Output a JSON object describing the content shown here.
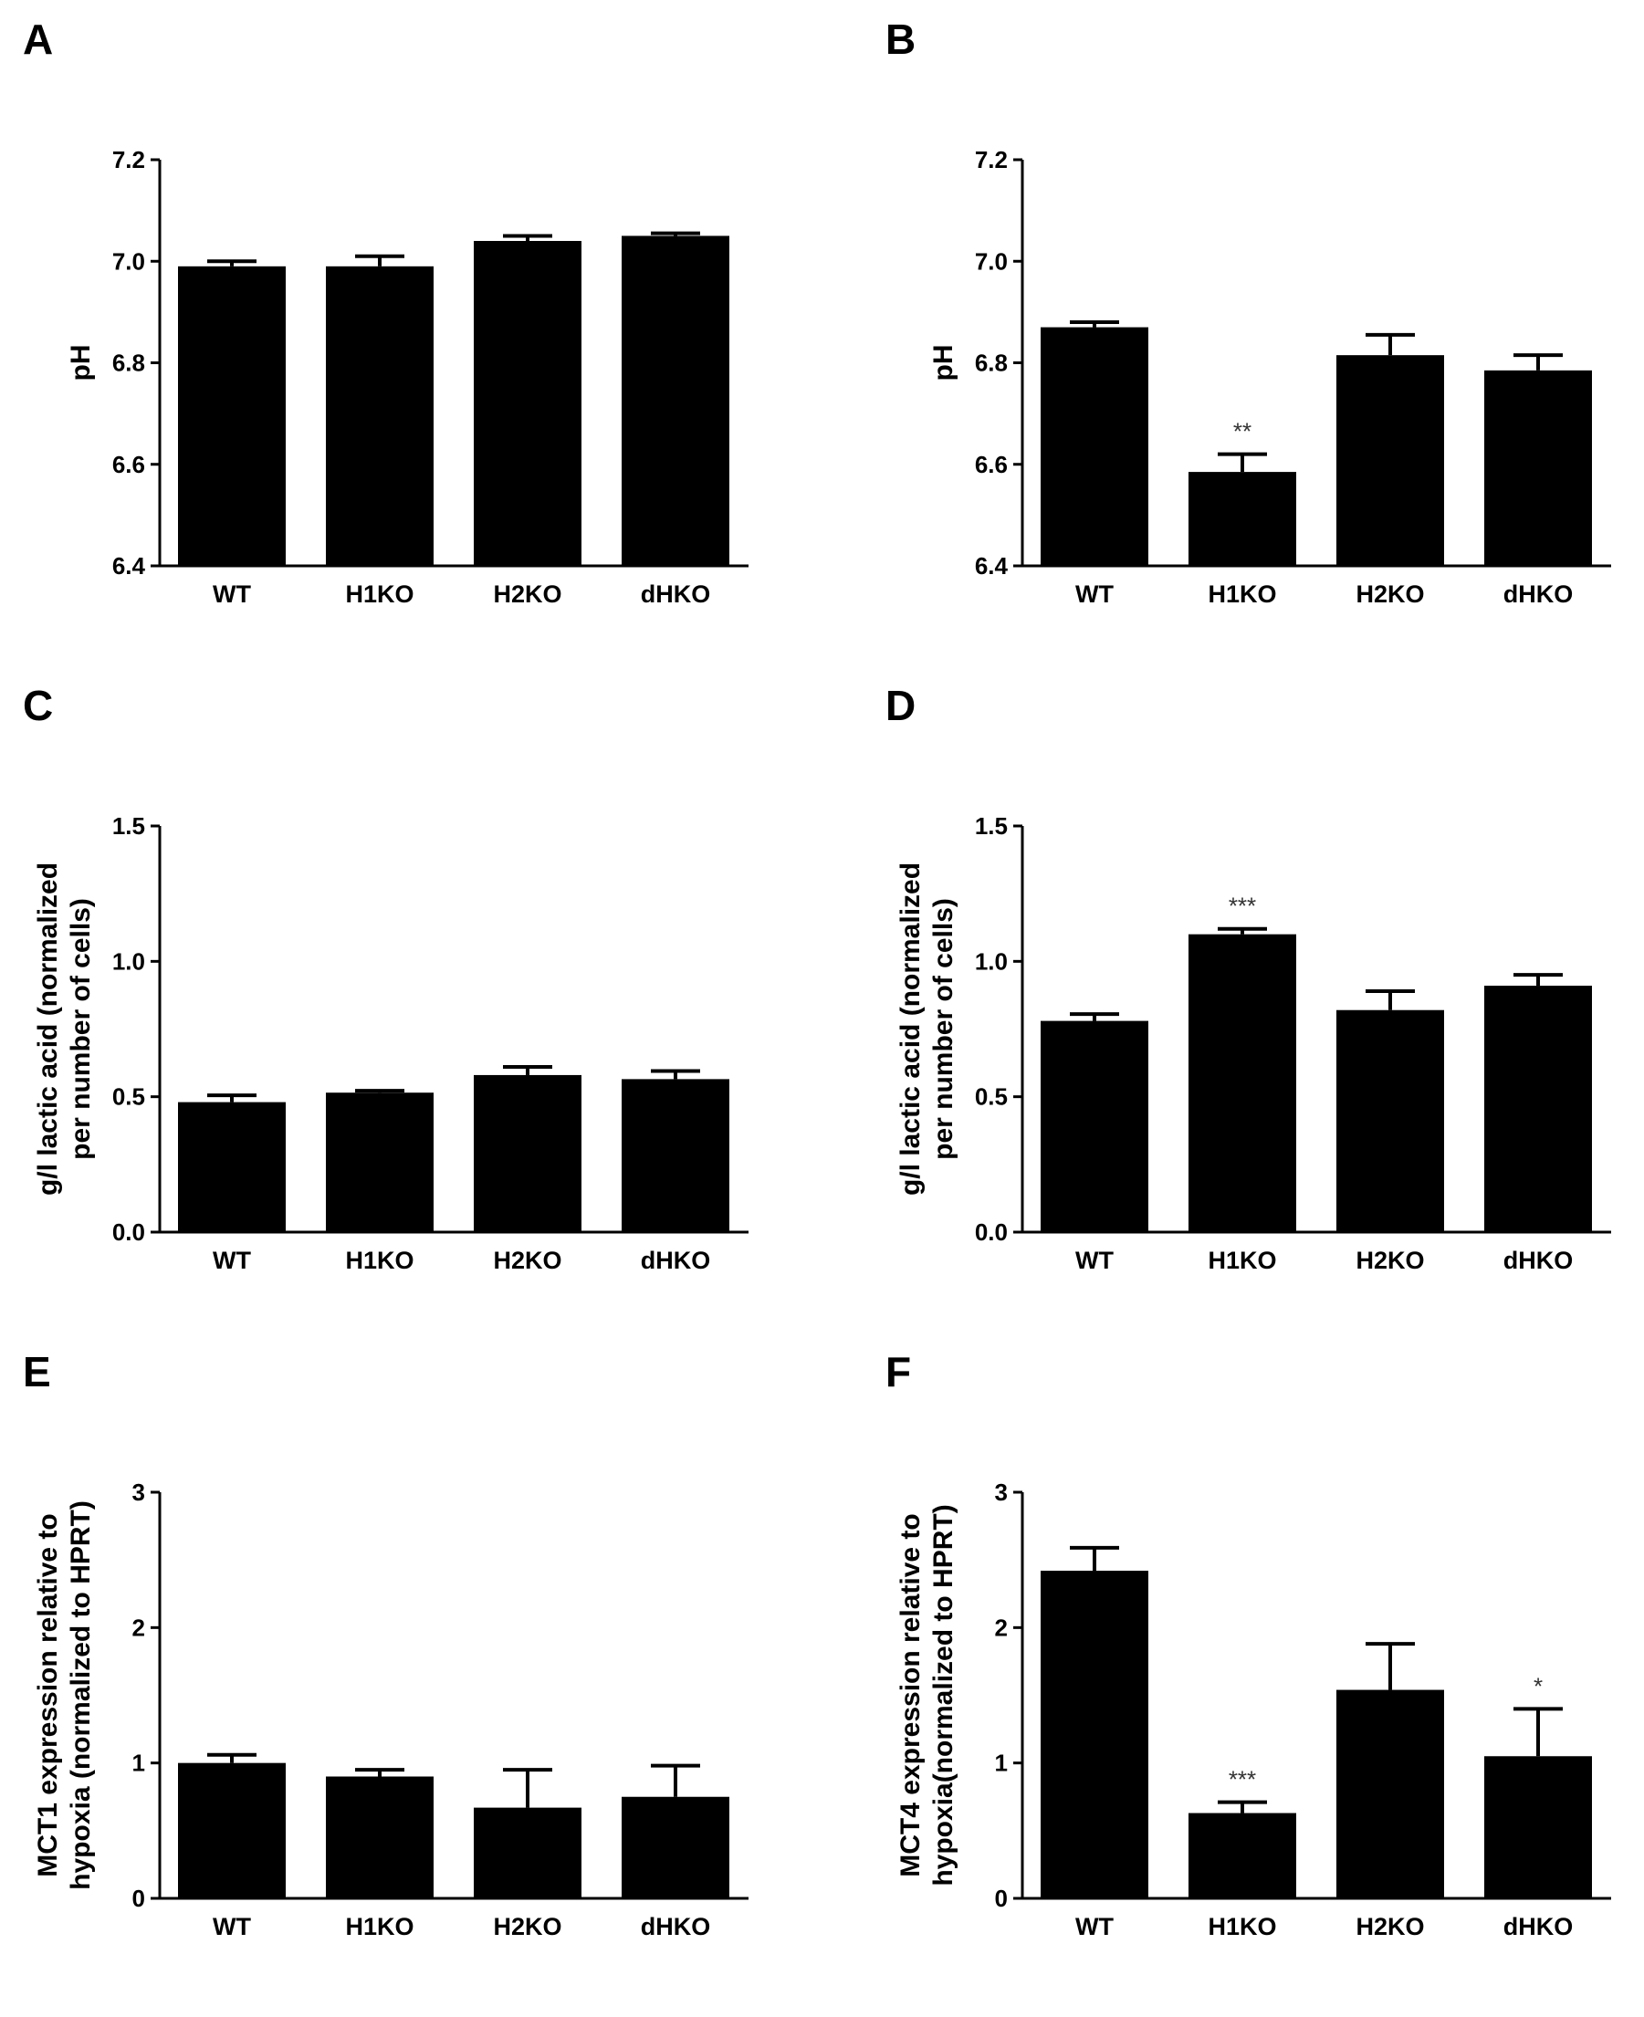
{
  "figure": {
    "panels": [
      "A",
      "B",
      "C",
      "D",
      "E",
      "F"
    ]
  },
  "chart_data": [
    {
      "panel": "A",
      "type": "bar",
      "categories": [
        "WT",
        "H1KO",
        "H2KO",
        "dHKO"
      ],
      "values": [
        6.99,
        6.99,
        7.04,
        7.05
      ],
      "errors": [
        0.01,
        0.02,
        0.01,
        0.005
      ],
      "significance": [
        "",
        "",
        "",
        ""
      ],
      "ylabel": [
        "pH"
      ],
      "ylim": [
        6.4,
        7.2
      ],
      "yticks": [
        6.4,
        6.6,
        6.8,
        7.0,
        7.2
      ],
      "ytick_labels": [
        "6.4",
        "6.6",
        "6.8",
        "7.0",
        "7.2"
      ]
    },
    {
      "panel": "B",
      "type": "bar",
      "categories": [
        "WT",
        "H1KO",
        "H2KO",
        "dHKO"
      ],
      "values": [
        6.87,
        6.585,
        6.815,
        6.785
      ],
      "errors": [
        0.01,
        0.035,
        0.04,
        0.03
      ],
      "significance": [
        "",
        "**",
        "",
        ""
      ],
      "ylabel": [
        "pH"
      ],
      "ylim": [
        6.4,
        7.2
      ],
      "yticks": [
        6.4,
        6.6,
        6.8,
        7.0,
        7.2
      ],
      "ytick_labels": [
        "6.4",
        "6.6",
        "6.8",
        "7.0",
        "7.2"
      ]
    },
    {
      "panel": "C",
      "type": "bar",
      "categories": [
        "WT",
        "H1KO",
        "H2KO",
        "dHKO"
      ],
      "values": [
        0.48,
        0.515,
        0.58,
        0.565
      ],
      "errors": [
        0.025,
        0.007,
        0.03,
        0.03
      ],
      "significance": [
        "",
        "",
        "",
        ""
      ],
      "ylabel": [
        "g/l lactic acid (normalized",
        "per number of cells)"
      ],
      "ylim": [
        0.0,
        1.5
      ],
      "yticks": [
        0.0,
        0.5,
        1.0,
        1.5
      ],
      "ytick_labels": [
        "0.0",
        "0.5",
        "1.0",
        "1.5"
      ]
    },
    {
      "panel": "D",
      "type": "bar",
      "categories": [
        "WT",
        "H1KO",
        "H2KO",
        "dHKO"
      ],
      "values": [
        0.78,
        1.1,
        0.82,
        0.91
      ],
      "errors": [
        0.025,
        0.02,
        0.07,
        0.04
      ],
      "significance": [
        "",
        "***",
        "",
        ""
      ],
      "ylabel": [
        "g/l lactic acid (normalized",
        "per number of cells)"
      ],
      "ylim": [
        0.0,
        1.5
      ],
      "yticks": [
        0.0,
        0.5,
        1.0,
        1.5
      ],
      "ytick_labels": [
        "0.0",
        "0.5",
        "1.0",
        "1.5"
      ]
    },
    {
      "panel": "E",
      "type": "bar",
      "categories": [
        "WT",
        "H1KO",
        "H2KO",
        "dHKO"
      ],
      "values": [
        1.0,
        0.9,
        0.67,
        0.75
      ],
      "errors": [
        0.06,
        0.05,
        0.28,
        0.23
      ],
      "significance": [
        "",
        "",
        "",
        ""
      ],
      "ylabel": [
        "MCT1 expression relative to",
        "hypoxia (normalized to HPRT)"
      ],
      "ylim": [
        0,
        3
      ],
      "yticks": [
        0,
        1,
        2,
        3
      ],
      "ytick_labels": [
        "0",
        "1",
        "2",
        "3"
      ]
    },
    {
      "panel": "F",
      "type": "bar",
      "categories": [
        "WT",
        "H1KO",
        "H2KO",
        "dHKO"
      ],
      "values": [
        2.42,
        0.63,
        1.54,
        1.05
      ],
      "errors": [
        0.17,
        0.08,
        0.34,
        0.35
      ],
      "significance": [
        "",
        "***",
        "",
        "*"
      ],
      "ylabel": [
        "MCT4 expression relative to",
        "hypoxia(normalized to HPRT)"
      ],
      "ylim": [
        0,
        3
      ],
      "yticks": [
        0,
        1,
        2,
        3
      ],
      "ytick_labels": [
        "0",
        "1",
        "2",
        "3"
      ]
    }
  ]
}
